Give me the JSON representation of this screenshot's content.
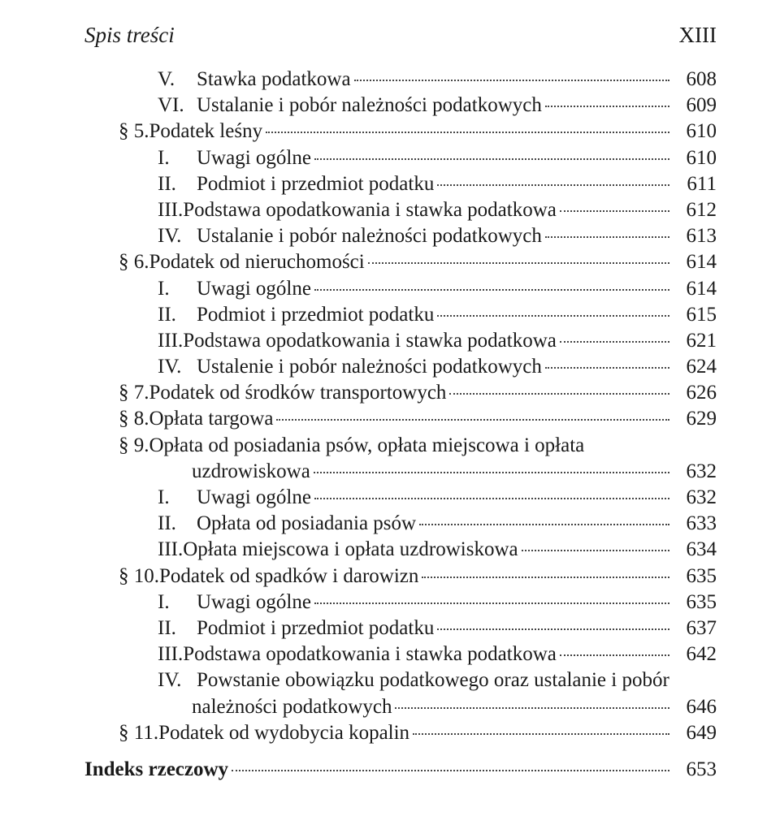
{
  "running_head": {
    "left": "Spis treści",
    "right": "XIII"
  },
  "entries": [
    {
      "indent": 2,
      "label": "V.",
      "title": "Stawka podatkowa",
      "page": "608"
    },
    {
      "indent": 2,
      "label": "VI.",
      "title": "Ustalanie i pobór należności podatkowych",
      "page": "609"
    },
    {
      "indent": 1,
      "label": "§ 5.",
      "title": "Podatek leśny",
      "page": "610"
    },
    {
      "indent": 2,
      "label": "I.",
      "title": "Uwagi ogólne",
      "page": "610"
    },
    {
      "indent": 2,
      "label": "II.",
      "title": "Podmiot i przedmiot podatku",
      "page": "611"
    },
    {
      "indent": 2,
      "label": "III.",
      "title": "Podstawa opodatkowania i stawka podatkowa",
      "page": "612"
    },
    {
      "indent": 2,
      "label": "IV.",
      "title": "Ustalanie i pobór należności podatkowych",
      "page": "613"
    },
    {
      "indent": 1,
      "label": "§ 6.",
      "title": "Podatek od nieruchomości",
      "page": "614"
    },
    {
      "indent": 2,
      "label": "I.",
      "title": "Uwagi ogólne",
      "page": "614"
    },
    {
      "indent": 2,
      "label": "II.",
      "title": "Podmiot i przedmiot podatku",
      "page": "615"
    },
    {
      "indent": 2,
      "label": "III.",
      "title": "Podstawa opodatkowania i stawka podatkowa",
      "page": "621"
    },
    {
      "indent": 2,
      "label": "IV.",
      "title": "Ustalenie i pobór należności podatkowych",
      "page": "624"
    },
    {
      "indent": 1,
      "label": "§ 7.",
      "title": "Podatek od środków transportowych",
      "page": "626"
    },
    {
      "indent": 1,
      "label": "§ 8.",
      "title": "Opłata targowa",
      "page": "629"
    },
    {
      "indent": 1,
      "label": "§ 9.",
      "title": "Opłata od posiadania psów, opłata miejscowa i opłata",
      "page": "",
      "nobreak": true
    },
    {
      "indent": 2,
      "label": "",
      "title": "uzdrowiskowa",
      "cont": true,
      "page": "632"
    },
    {
      "indent": 2,
      "label": "I.",
      "title": "Uwagi ogólne",
      "page": "632"
    },
    {
      "indent": 2,
      "label": "II.",
      "title": "Opłata od posiadania psów",
      "page": "633"
    },
    {
      "indent": 2,
      "label": "III.",
      "title": "Opłata miejscowa i opłata uzdrowiskowa",
      "page": "634"
    },
    {
      "indent": 1,
      "label": "§ 10.",
      "title": "Podatek od spadków i darowizn",
      "page": "635"
    },
    {
      "indent": 2,
      "label": "I.",
      "title": "Uwagi ogólne",
      "page": "635"
    },
    {
      "indent": 2,
      "label": "II.",
      "title": "Podmiot i przedmiot podatku",
      "page": "637"
    },
    {
      "indent": 2,
      "label": "III.",
      "title": "Podstawa opodatkowania i stawka podatkowa",
      "page": "642"
    },
    {
      "indent": 2,
      "label": "IV.",
      "title": "Powstanie obowiązku podatkowego oraz ustalanie i pobór",
      "page": "",
      "nobreak": true
    },
    {
      "indent": 2,
      "label": "",
      "title": "należności podatkowych",
      "cont": true,
      "page": "646"
    },
    {
      "indent": 1,
      "label": "§ 11.",
      "title": "Podatek od wydobycia kopalin",
      "page": "649"
    }
  ],
  "index": {
    "title": "Indeks rzeczowy",
    "page": "653"
  }
}
